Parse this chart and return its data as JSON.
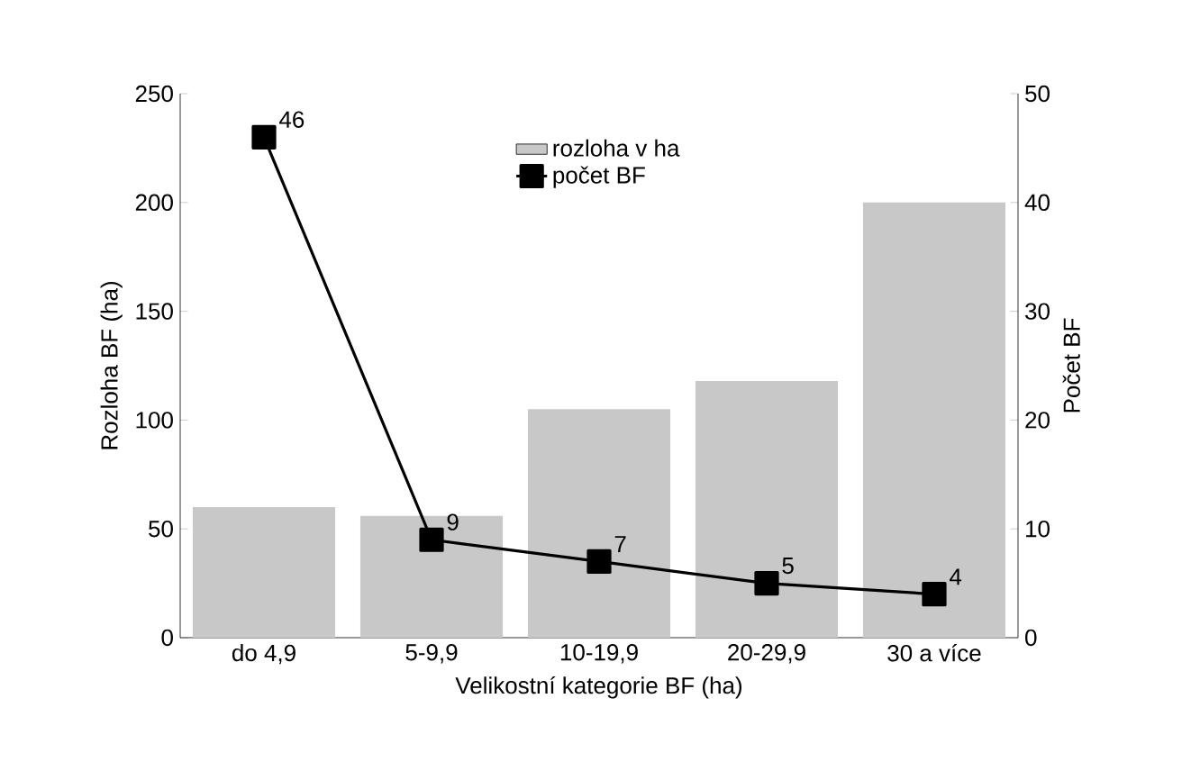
{
  "chart_data": {
    "type": "bar",
    "xlabel": "Velikostní kategorie BF (ha)",
    "ylabel": "Rozloha BF (ha)",
    "y2label": "Počet BF",
    "categories": [
      "do 4,9",
      "5-9,9",
      "10-19,9",
      "20-29,9",
      "30 a více"
    ],
    "series": [
      {
        "name": "rozloha v ha",
        "color": "#c8c8c8",
        "values": [
          60,
          56,
          105,
          118,
          200
        ]
      },
      {
        "name": "počet BF",
        "type": "line",
        "axis": "y2",
        "color": "#000000",
        "marker": "square",
        "values": [
          46,
          9,
          7,
          5,
          4
        ],
        "value_labels": [
          "46",
          "9",
          "7",
          "5",
          "4"
        ]
      }
    ],
    "ylim": [
      0,
      250
    ],
    "yticks": [
      0,
      50,
      100,
      150,
      200,
      250
    ],
    "y2lim": [
      0,
      50
    ],
    "y2ticks": [
      0,
      10,
      20,
      30,
      40,
      50
    ],
    "legend": "top",
    "grid": false
  }
}
